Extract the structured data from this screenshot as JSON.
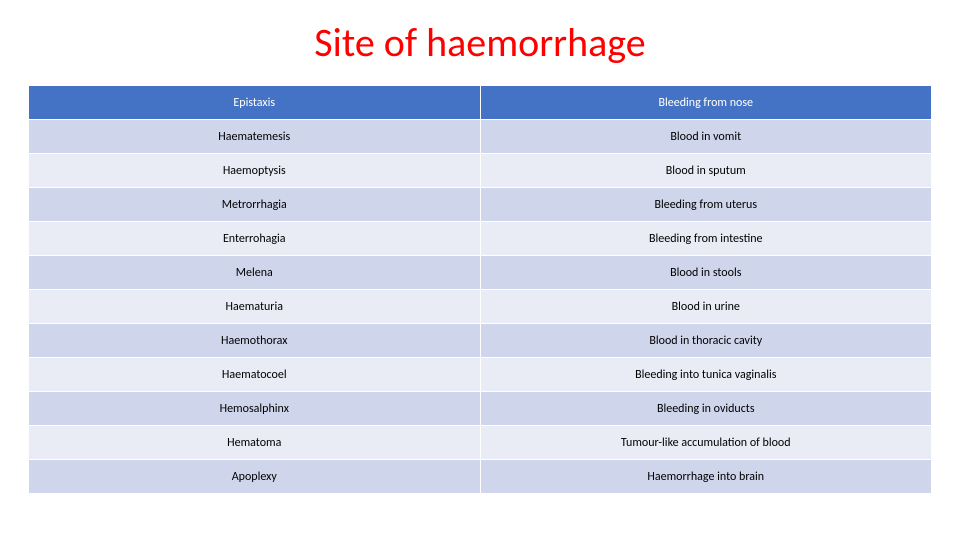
{
  "title": "Site of haemorrhage",
  "title_color": "#ff0000",
  "title_fontsize": 40,
  "table": {
    "type": "table",
    "columns": [
      "term",
      "definition"
    ],
    "column_widths": [
      "50%",
      "50%"
    ],
    "header_bg": "#4472c4",
    "header_text_color": "#ffffff",
    "row_odd_bg": "#cfd5ea",
    "row_even_bg": "#e9ebf5",
    "border_color": "#ffffff",
    "cell_fontsize": 12,
    "rows": [
      {
        "term": "Epistaxis",
        "definition": "Bleeding from nose",
        "style": "header"
      },
      {
        "term": "Haematemesis",
        "definition": "Blood in vomit",
        "style": "odd"
      },
      {
        "term": "Haemoptysis",
        "definition": "Blood in sputum",
        "style": "even"
      },
      {
        "term": "Metrorrhagia",
        "definition": "Bleeding from uterus",
        "style": "odd"
      },
      {
        "term": "Enterrohagia",
        "definition": "Bleeding from intestine",
        "style": "even"
      },
      {
        "term": "Melena",
        "definition": "Blood in stools",
        "style": "odd"
      },
      {
        "term": "Haematuria",
        "definition": "Blood in urine",
        "style": "even"
      },
      {
        "term": "Haemothorax",
        "definition": "Blood in thoracic cavity",
        "style": "odd"
      },
      {
        "term": "Haematocoel",
        "definition": "Bleeding into tunica vaginalis",
        "style": "even"
      },
      {
        "term": "Hemosalphinx",
        "definition": "Bleeding in oviducts",
        "style": "odd"
      },
      {
        "term": "Hematoma",
        "definition": "Tumour-like accumulation of blood",
        "style": "even"
      },
      {
        "term": "Apoplexy",
        "definition": "Haemorrhage into brain",
        "style": "odd"
      }
    ]
  }
}
